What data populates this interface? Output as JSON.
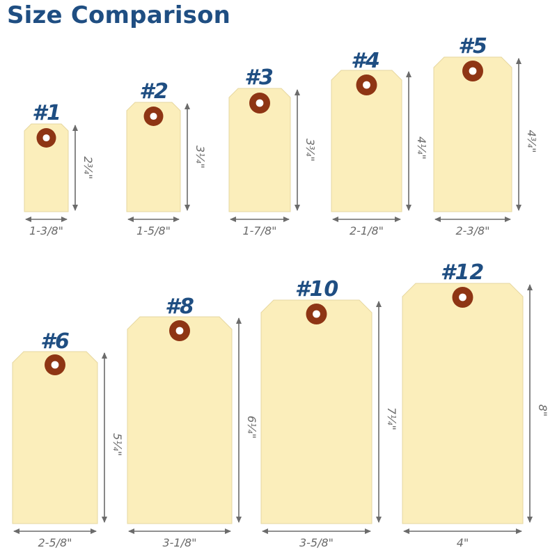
{
  "title": "Size Comparison",
  "colors": {
    "title": "#1f4e82",
    "tag_fill": "#fbeebb",
    "tag_stroke": "#e6d7a0",
    "eyelet": "#8e3514",
    "eyelet_hole": "#ffffff",
    "arrow": "#6b6b6b"
  },
  "tags": [
    {
      "label": "#1",
      "width": "1-3/8\"",
      "height": "2¾\""
    },
    {
      "label": "#2",
      "width": "1-5/8\"",
      "height": "3¼\""
    },
    {
      "label": "#3",
      "width": "1-7/8\"",
      "height": "3¾\""
    },
    {
      "label": "#4",
      "width": "2-1/8\"",
      "height": "4¼\""
    },
    {
      "label": "#5",
      "width": "2-3/8\"",
      "height": "4¾\""
    },
    {
      "label": "#6",
      "width": "2-5/8\"",
      "height": "5¼\""
    },
    {
      "label": "#8",
      "width": "3-1/8\"",
      "height": "6¼\""
    },
    {
      "label": "#10",
      "width": "3-5/8\"",
      "height": "7¼\""
    },
    {
      "label": "#12",
      "width": "4\"",
      "height": "8\""
    }
  ]
}
